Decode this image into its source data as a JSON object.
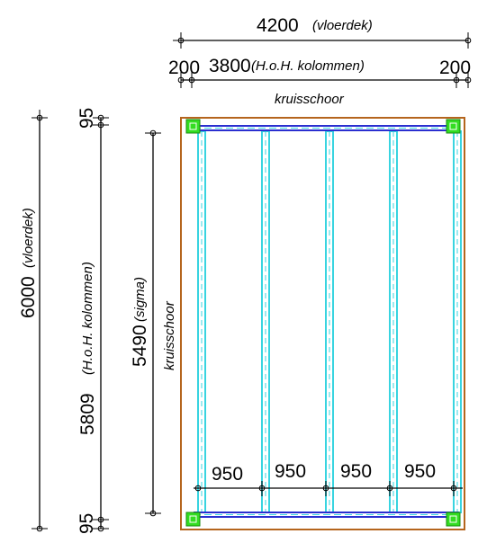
{
  "colors": {
    "deck_outline": "#b5651d",
    "beam": "#2a2fd0",
    "sigma": "#38d4e0",
    "column": "#33dd22",
    "dim_line": "#000000"
  },
  "top_dims": {
    "total_value": "4200",
    "total_note": "(vloerdek)",
    "left_edge": "200",
    "span_value": "3800",
    "span_note": "(H.o.H. kolommen)",
    "right_edge": "200"
  },
  "bracing_top": "kruisschoor",
  "bracing_side": "kruisschoor",
  "left_dims": {
    "deck_value": "6000",
    "deck_note": "(vloerdek)",
    "columns_value": "5809",
    "columns_note": "(H.o.H. kolommen)",
    "top_edge": "95",
    "bottom_edge": "95",
    "sigma_value": "5490",
    "sigma_note": "(sigma)"
  },
  "bottom_dims": {
    "spacing_1": "950",
    "spacing_2": "950",
    "spacing_3": "950",
    "spacing_4": "950"
  }
}
